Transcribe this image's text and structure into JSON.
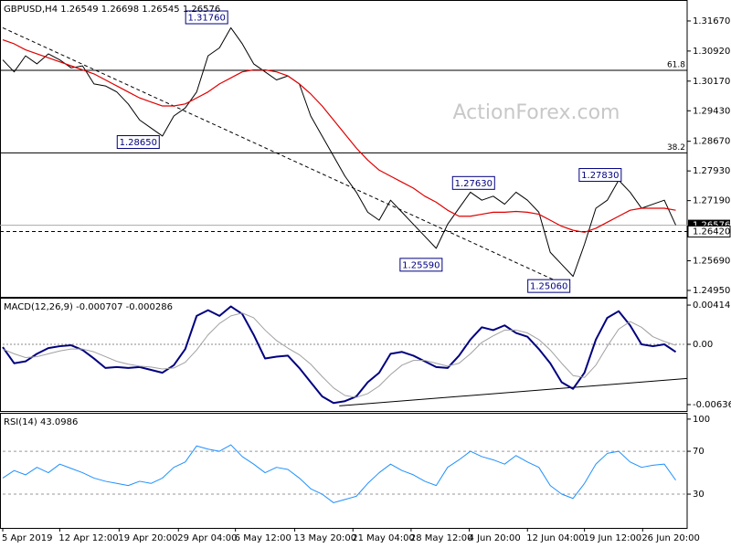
{
  "chart_data": [
    {
      "type": "line",
      "title": "GBPUSD,H4  1.26549 1.26698 1.26545 1.26576",
      "watermark": "ActionForex.com",
      "xlim": [
        0,
        60
      ],
      "ylim": [
        1.2479,
        1.3217
      ],
      "yticks": [
        {
          "value": 1.3167,
          "label": "1.31670"
        },
        {
          "value": 1.3092,
          "label": "1.30920"
        },
        {
          "value": 1.3017,
          "label": "1.30170"
        },
        {
          "value": 1.2943,
          "label": "1.29430"
        },
        {
          "value": 1.2867,
          "label": "1.28670"
        },
        {
          "value": 1.2793,
          "label": "1.27930"
        },
        {
          "value": 1.2719,
          "label": "1.27190"
        },
        {
          "value": 1.2569,
          "label": "1.25690"
        },
        {
          "value": 1.2495,
          "label": "1.24950"
        }
      ],
      "series": [
        {
          "color": "#000000",
          "width": 1,
          "values": [
            1.307,
            1.304,
            1.308,
            1.306,
            1.3085,
            1.307,
            1.305,
            1.3055,
            1.301,
            1.3005,
            1.299,
            1.296,
            1.292,
            1.29,
            1.288,
            1.293,
            1.295,
            1.299,
            1.308,
            1.31,
            1.315,
            1.311,
            1.306,
            1.304,
            1.302,
            1.303,
            1.301,
            1.293,
            1.288,
            1.283,
            1.278,
            1.274,
            1.269,
            1.267,
            1.272,
            1.269,
            1.266,
            1.263,
            1.26,
            1.266,
            1.27,
            1.274,
            1.272,
            1.273,
            1.271,
            1.274,
            1.272,
            1.269,
            1.259,
            1.256,
            1.253,
            1.261,
            1.27,
            1.272,
            1.277,
            1.274,
            1.27,
            1.271,
            1.272,
            1.2658
          ]
        },
        {
          "color": "#e00000",
          "width": 1.2,
          "values": [
            1.312,
            1.311,
            1.3095,
            1.3085,
            1.3075,
            1.3065,
            1.3055,
            1.3045,
            1.3035,
            1.302,
            1.3005,
            1.299,
            1.2975,
            1.2965,
            1.2955,
            1.2955,
            1.296,
            1.2975,
            1.299,
            1.301,
            1.3025,
            1.304,
            1.3045,
            1.3045,
            1.304,
            1.303,
            1.301,
            1.2985,
            1.2955,
            1.292,
            1.2885,
            1.285,
            1.282,
            1.2795,
            1.278,
            1.2765,
            1.275,
            1.273,
            1.2715,
            1.2695,
            1.268,
            1.268,
            1.2685,
            1.269,
            1.269,
            1.2692,
            1.269,
            1.2685,
            1.267,
            1.2655,
            1.2645,
            1.264,
            1.265,
            1.2665,
            1.268,
            1.2695,
            1.27,
            1.27,
            1.27,
            1.2695
          ]
        }
      ],
      "levels": [
        {
          "value": 1.3044,
          "label": "61.8"
        },
        {
          "value": 1.2838,
          "label": "38.2"
        }
      ],
      "last_price": {
        "value": 1.26576,
        "label": "1.26576"
      },
      "support": {
        "value": 1.2642,
        "label": "1.26420"
      },
      "trendline": {
        "x": [
          0,
          49.8
        ],
        "y": [
          1.315,
          1.2502
        ]
      },
      "annotations": [
        {
          "label": "1.31760",
          "x": 19.8,
          "y": 1.3176
        },
        {
          "label": "1.28650",
          "x": 13.8,
          "y": 1.2865
        },
        {
          "label": "1.25590",
          "x": 38.6,
          "y": 1.2559
        },
        {
          "label": "1.27630",
          "x": 43.2,
          "y": 1.2763
        },
        {
          "label": "1.25060",
          "x": 49.8,
          "y": 1.2506
        },
        {
          "label": "1.27830",
          "x": 54.3,
          "y": 1.2783
        }
      ]
    },
    {
      "type": "line",
      "title": "MACD(12,26,9) -0.000707 -0.000286",
      "xlim": [
        0,
        60
      ],
      "ylim": [
        -0.00704,
        0.00482
      ],
      "yticks": [
        0.004141,
        {
          "value": 0,
          "label": "0.00"
        },
        -0.006365
      ],
      "zero_line": true,
      "series": [
        {
          "color": "#000080",
          "width": 2,
          "values": [
            -0.0003,
            -0.002,
            -0.0018,
            -0.001,
            -0.0004,
            -0.0002,
            -0.0001,
            -0.0006,
            -0.0015,
            -0.0025,
            -0.0024,
            -0.0025,
            -0.0024,
            -0.0027,
            -0.003,
            -0.0022,
            -0.0005,
            0.003,
            0.0036,
            0.003,
            0.004,
            0.0032,
            0.001,
            -0.0015,
            -0.0013,
            -0.0012,
            -0.0025,
            -0.004,
            -0.0055,
            -0.0062,
            -0.006,
            -0.0055,
            -0.004,
            -0.003,
            -0.001,
            -0.0008,
            -0.0012,
            -0.0018,
            -0.0024,
            -0.0025,
            -0.0012,
            0.0005,
            0.0018,
            0.0015,
            0.002,
            0.0012,
            0.0008,
            -0.0005,
            -0.002,
            -0.004,
            -0.0047,
            -0.003,
            0.0005,
            0.0028,
            0.0035,
            0.002,
            0.0,
            -0.0002,
            0.0,
            -0.0008
          ]
        },
        {
          "color": "#a0a0a0",
          "width": 1,
          "values": [
            -0.0005,
            -0.001,
            -0.0014,
            -0.0013,
            -0.001,
            -0.0007,
            -0.0005,
            -0.0005,
            -0.0008,
            -0.0013,
            -0.0018,
            -0.0021,
            -0.0023,
            -0.0024,
            -0.0026,
            -0.0025,
            -0.0019,
            -0.0006,
            0.001,
            0.0022,
            0.003,
            0.0033,
            0.0028,
            0.0015,
            0.0004,
            -0.0004,
            -0.0011,
            -0.0021,
            -0.0034,
            -0.0046,
            -0.0054,
            -0.0056,
            -0.0052,
            -0.0044,
            -0.0032,
            -0.0022,
            -0.0017,
            -0.0017,
            -0.002,
            -0.0023,
            -0.002,
            -0.001,
            0.0002,
            0.0009,
            0.0015,
            0.0015,
            0.0012,
            0.0005,
            -0.0006,
            -0.002,
            -0.0033,
            -0.0035,
            -0.0022,
            -0.0002,
            0.0016,
            0.0024,
            0.0018,
            0.0008,
            0.0003,
            -0.0001
          ]
        }
      ],
      "trendline": {
        "x": [
          29.5,
          60
        ],
        "y": [
          -0.0065,
          -0.0036
        ]
      }
    },
    {
      "type": "line",
      "title": "RSI(14) 43.0986",
      "xlim": [
        0,
        60
      ],
      "ylim": [
        -1.5,
        105
      ],
      "yticks": [
        100,
        70,
        30
      ],
      "dashed_levels": [
        70,
        30
      ],
      "series": [
        {
          "color": "#1e90ff",
          "width": 1,
          "values": [
            45,
            52,
            48,
            55,
            50,
            58,
            54,
            50,
            45,
            42,
            40,
            38,
            42,
            40,
            45,
            55,
            60,
            75,
            72,
            70,
            76,
            65,
            58,
            50,
            55,
            53,
            45,
            35,
            30,
            22,
            25,
            28,
            40,
            50,
            58,
            52,
            48,
            42,
            38,
            55,
            62,
            70,
            65,
            62,
            58,
            66,
            60,
            55,
            38,
            30,
            26,
            40,
            58,
            68,
            70,
            60,
            55,
            57,
            58,
            43
          ]
        }
      ],
      "xticks": [
        {
          "value": 0,
          "label": "5 Apr 2019"
        },
        {
          "value": 5.0,
          "label": "12 Apr 12:00"
        },
        {
          "value": 10.2,
          "label": "19 Apr 20:00"
        },
        {
          "value": 15.4,
          "label": "29 Apr 04:00"
        },
        {
          "value": 20.4,
          "label": "6 May 12:00"
        },
        {
          "value": 25.6,
          "label": "13 May 20:00"
        },
        {
          "value": 30.7,
          "label": "21 May 04:00"
        },
        {
          "value": 35.8,
          "label": "28 May 12:00"
        },
        {
          "value": 40.9,
          "label": "4 Jun 20:00"
        },
        {
          "value": 46.0,
          "label": "12 Jun 04:00"
        },
        {
          "value": 51.0,
          "label": "19 Jun 12:00"
        },
        {
          "value": 56.1,
          "label": "26 Jun 20:00"
        }
      ]
    }
  ]
}
